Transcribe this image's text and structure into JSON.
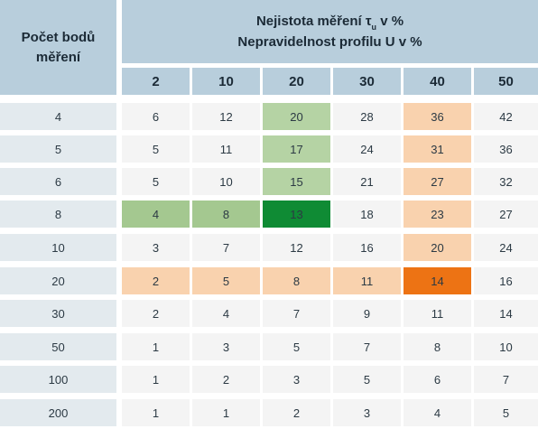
{
  "header": {
    "row_label_line1": "Počet bodů",
    "row_label_line2": "měření",
    "title_line1_prefix": "Nejistota měření τ",
    "title_line1_sub": "u",
    "title_line1_suffix": " v %",
    "title_line2": "Nepravidelnost profilu U v %"
  },
  "columns": [
    "2",
    "10",
    "20",
    "30",
    "40",
    "50"
  ],
  "rows": [
    {
      "label": "4",
      "values": [
        "6",
        "12",
        "20",
        "28",
        "36",
        "42"
      ]
    },
    {
      "label": "5",
      "values": [
        "5",
        "11",
        "17",
        "24",
        "31",
        "36"
      ]
    },
    {
      "label": "6",
      "values": [
        "5",
        "10",
        "15",
        "21",
        "27",
        "32"
      ]
    },
    {
      "label": "8",
      "values": [
        "4",
        "8",
        "13",
        "18",
        "23",
        "27"
      ]
    },
    {
      "label": "10",
      "values": [
        "3",
        "7",
        "12",
        "16",
        "20",
        "24"
      ]
    },
    {
      "label": "20",
      "values": [
        "2",
        "5",
        "8",
        "11",
        "14",
        "16"
      ]
    },
    {
      "label": "30",
      "values": [
        "2",
        "4",
        "7",
        "9",
        "11",
        "14"
      ]
    },
    {
      "label": "50",
      "values": [
        "1",
        "3",
        "5",
        "7",
        "8",
        "10"
      ]
    },
    {
      "label": "100",
      "values": [
        "1",
        "2",
        "3",
        "5",
        "6",
        "7"
      ]
    },
    {
      "label": "200",
      "values": [
        "1",
        "1",
        "2",
        "3",
        "4",
        "5"
      ]
    }
  ],
  "highlights": [
    {
      "row": 0,
      "col": 2,
      "color": "#b5d3a4"
    },
    {
      "row": 0,
      "col": 4,
      "color": "#f9d2ae"
    },
    {
      "row": 1,
      "col": 2,
      "color": "#b5d3a4"
    },
    {
      "row": 1,
      "col": 4,
      "color": "#f9d2ae"
    },
    {
      "row": 2,
      "col": 2,
      "color": "#b5d3a4"
    },
    {
      "row": 2,
      "col": 4,
      "color": "#f9d2ae"
    },
    {
      "row": 3,
      "col": 0,
      "color": "#a4c890"
    },
    {
      "row": 3,
      "col": 1,
      "color": "#a4c890"
    },
    {
      "row": 3,
      "col": 2,
      "color": "#0f8b34"
    },
    {
      "row": 3,
      "col": 4,
      "color": "#f9d2ae"
    },
    {
      "row": 4,
      "col": 4,
      "color": "#f9d2ae"
    },
    {
      "row": 5,
      "col": 0,
      "color": "#f9d2ae"
    },
    {
      "row": 5,
      "col": 1,
      "color": "#f9d2ae"
    },
    {
      "row": 5,
      "col": 2,
      "color": "#f9d2ae"
    },
    {
      "row": 5,
      "col": 3,
      "color": "#f9d2ae"
    },
    {
      "row": 5,
      "col": 4,
      "color": "#ed7314"
    }
  ],
  "colors": {
    "header_bg": "#b8cedc",
    "row_label_bg": "#e3eaee",
    "cell_bg": "#f4f4f4",
    "text": "#2c3a44"
  }
}
